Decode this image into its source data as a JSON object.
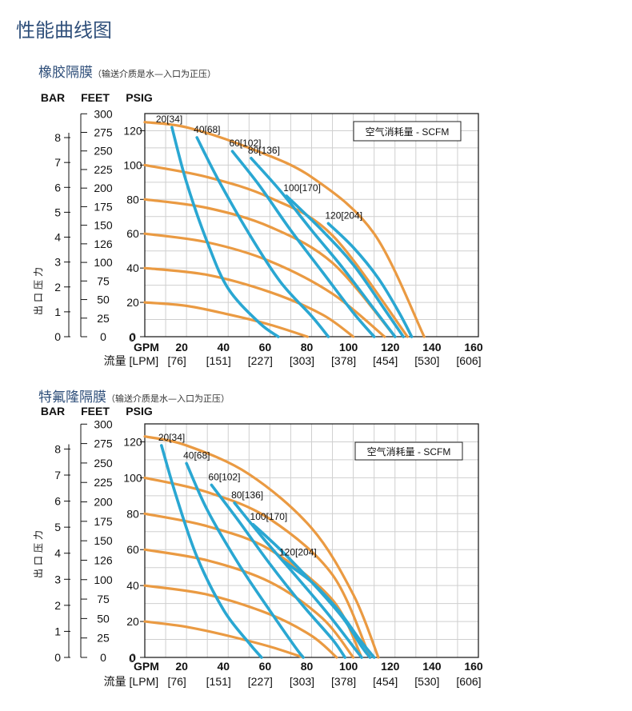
{
  "page_title": "性能曲线图",
  "sections": [
    {
      "title": "橡胶隔膜",
      "note": "（输送介质是水—入口为正压）"
    },
    {
      "title": "特氟隆隔膜",
      "note": "（输送介质是水—入口为正压）"
    }
  ],
  "colors": {
    "pressure_curve": "#ea9a42",
    "air_curve": "#2aa7d2",
    "grid": "#cfcfcf",
    "frame": "#222222"
  },
  "chart_data": [
    {
      "type": "line",
      "title": "",
      "legend": "空气消耗量 - SCFM",
      "legend_position": "top-right",
      "grid": true,
      "y_axis_label": "出口压力",
      "unit_headers": {
        "bar": "BAR",
        "feet": "FEET",
        "psig": "PSIG"
      },
      "bar_ticks": [
        "0",
        "1",
        "2",
        "3",
        "4",
        "5",
        "6",
        "7",
        "8"
      ],
      "feet_ticks": [
        "0",
        "25",
        "50",
        "75",
        "100",
        "126",
        "150",
        "175",
        "200",
        "225",
        "250",
        "275",
        "300"
      ],
      "psig_ticks": [
        "0",
        "20",
        "40",
        "60",
        "80",
        "100",
        "120"
      ],
      "x_unit_label": "GPM",
      "x_ticks": [
        "20",
        "40",
        "60",
        "80",
        "100",
        "120",
        "140",
        "160"
      ],
      "lpm_prefix": "流量 [LPM]",
      "lpm_ticks": [
        "[76]",
        "[151]",
        "[227]",
        "[303]",
        "[378]",
        "[454]",
        "[530]",
        "[606]"
      ],
      "xlim": [
        0,
        160
      ],
      "ylim": [
        0,
        130
      ],
      "pressure_curves": [
        {
          "name": "",
          "points": [
            [
              0,
              20
            ],
            [
              20,
              18
            ],
            [
              40,
              13
            ],
            [
              60,
              7
            ],
            [
              78,
              0
            ]
          ]
        },
        {
          "name": "",
          "points": [
            [
              0,
              40
            ],
            [
              30,
              36
            ],
            [
              60,
              26
            ],
            [
              85,
              13
            ],
            [
              100,
              0
            ]
          ]
        },
        {
          "name": "",
          "points": [
            [
              0,
              60
            ],
            [
              30,
              55
            ],
            [
              60,
              44
            ],
            [
              90,
              25
            ],
            [
              115,
              0
            ]
          ]
        },
        {
          "name": "",
          "points": [
            [
              0,
              80
            ],
            [
              30,
              75
            ],
            [
              60,
              64
            ],
            [
              90,
              43
            ],
            [
              120,
              0
            ]
          ]
        },
        {
          "name": "",
          "points": [
            [
              0,
              100
            ],
            [
              30,
              93
            ],
            [
              60,
              81
            ],
            [
              90,
              59
            ],
            [
              126,
              0
            ]
          ]
        },
        {
          "name": "",
          "points": [
            [
              0,
              125
            ],
            [
              20,
              122
            ],
            [
              50,
              110
            ],
            [
              80,
              93
            ],
            [
              110,
              60
            ],
            [
              134,
              0
            ]
          ]
        }
      ],
      "air_curves": [
        {
          "name": "20[34]",
          "points": [
            [
              13,
              122
            ],
            [
              20,
              90
            ],
            [
              30,
              55
            ],
            [
              40,
              28
            ],
            [
              55,
              8
            ],
            [
              64,
              0
            ]
          ]
        },
        {
          "name": "40[68]",
          "points": [
            [
              25,
              116
            ],
            [
              35,
              92
            ],
            [
              50,
              60
            ],
            [
              65,
              32
            ],
            [
              80,
              12
            ],
            [
              88,
              0
            ]
          ]
        },
        {
          "name": "60[102]",
          "points": [
            [
              42,
              108
            ],
            [
              55,
              88
            ],
            [
              70,
              62
            ],
            [
              85,
              38
            ],
            [
              100,
              14
            ],
            [
              110,
              0
            ]
          ]
        },
        {
          "name": "80[136]",
          "points": [
            [
              51,
              104
            ],
            [
              65,
              85
            ],
            [
              80,
              62
            ],
            [
              95,
              40
            ],
            [
              110,
              16
            ],
            [
              120,
              0
            ]
          ]
        },
        {
          "name": "100[170]",
          "points": [
            [
              68,
              82
            ],
            [
              85,
              62
            ],
            [
              100,
              42
            ],
            [
              115,
              16
            ],
            [
              124,
              0
            ]
          ]
        },
        {
          "name": "120[204]",
          "points": [
            [
              88,
              66
            ],
            [
              100,
              52
            ],
            [
              112,
              34
            ],
            [
              122,
              14
            ],
            [
              128,
              0
            ]
          ]
        }
      ]
    },
    {
      "type": "line",
      "title": "",
      "legend": "空气消耗量 - SCFM",
      "legend_position": "top-right",
      "grid": true,
      "y_axis_label": "出口压力",
      "unit_headers": {
        "bar": "BAR",
        "feet": "FEET",
        "psig": "PSIG"
      },
      "bar_ticks": [
        "0",
        "1",
        "2",
        "3",
        "4",
        "5",
        "6",
        "7",
        "8"
      ],
      "feet_ticks": [
        "0",
        "25",
        "50",
        "75",
        "100",
        "126",
        "150",
        "175",
        "200",
        "225",
        "250",
        "275",
        "300"
      ],
      "psig_ticks": [
        "0",
        "20",
        "40",
        "60",
        "80",
        "100",
        "120"
      ],
      "x_unit_label": "GPM",
      "x_ticks": [
        "20",
        "40",
        "60",
        "80",
        "100",
        "120",
        "140",
        "160"
      ],
      "lpm_prefix": "流量 [LPM]",
      "lpm_ticks": [
        "[76]",
        "[151]",
        "[227]",
        "[303]",
        "[378]",
        "[454]",
        "[530]",
        "[606]"
      ],
      "xlim": [
        0,
        160
      ],
      "ylim": [
        0,
        130
      ],
      "pressure_curves": [
        {
          "name": "",
          "points": [
            [
              0,
              20
            ],
            [
              20,
              17
            ],
            [
              40,
              12
            ],
            [
              60,
              6
            ],
            [
              76,
              0
            ]
          ]
        },
        {
          "name": "",
          "points": [
            [
              0,
              40
            ],
            [
              30,
              35
            ],
            [
              60,
              24
            ],
            [
              80,
              12
            ],
            [
              92,
              0
            ]
          ]
        },
        {
          "name": "",
          "points": [
            [
              0,
              60
            ],
            [
              30,
              54
            ],
            [
              60,
              42
            ],
            [
              85,
              22
            ],
            [
              100,
              0
            ]
          ]
        },
        {
          "name": "",
          "points": [
            [
              0,
              80
            ],
            [
              30,
              73
            ],
            [
              60,
              60
            ],
            [
              90,
              32
            ],
            [
              104,
              0
            ]
          ]
        },
        {
          "name": "",
          "points": [
            [
              0,
              100
            ],
            [
              30,
              92
            ],
            [
              60,
              77
            ],
            [
              90,
              46
            ],
            [
              108,
              0
            ]
          ]
        },
        {
          "name": "",
          "points": [
            [
              0,
              123
            ],
            [
              20,
              118
            ],
            [
              50,
              102
            ],
            [
              80,
              72
            ],
            [
              100,
              35
            ],
            [
              112,
              0
            ]
          ]
        }
      ],
      "air_curves": [
        {
          "name": "20[34]",
          "points": [
            [
              8,
              118
            ],
            [
              15,
              90
            ],
            [
              25,
              56
            ],
            [
              38,
              26
            ],
            [
              50,
              8
            ],
            [
              56,
              0
            ]
          ]
        },
        {
          "name": "40[68]",
          "points": [
            [
              20,
              108
            ],
            [
              30,
              82
            ],
            [
              45,
              52
            ],
            [
              60,
              26
            ],
            [
              72,
              6
            ],
            [
              76,
              0
            ]
          ]
        },
        {
          "name": "60[102]",
          "points": [
            [
              32,
              96
            ],
            [
              45,
              76
            ],
            [
              60,
              52
            ],
            [
              75,
              30
            ],
            [
              90,
              10
            ],
            [
              96,
              0
            ]
          ]
        },
        {
          "name": "80[136]",
          "points": [
            [
              43,
              86
            ],
            [
              57,
              66
            ],
            [
              72,
              46
            ],
            [
              88,
              24
            ],
            [
              100,
              6
            ],
            [
              104,
              0
            ]
          ]
        },
        {
          "name": "100[170]",
          "points": [
            [
              52,
              74
            ],
            [
              65,
              60
            ],
            [
              80,
              42
            ],
            [
              95,
              22
            ],
            [
              104,
              6
            ],
            [
              108,
              0
            ]
          ]
        },
        {
          "name": "120[204]",
          "points": [
            [
              66,
              54
            ],
            [
              80,
              42
            ],
            [
              93,
              26
            ],
            [
              103,
              10
            ],
            [
              110,
              0
            ]
          ]
        }
      ]
    }
  ]
}
